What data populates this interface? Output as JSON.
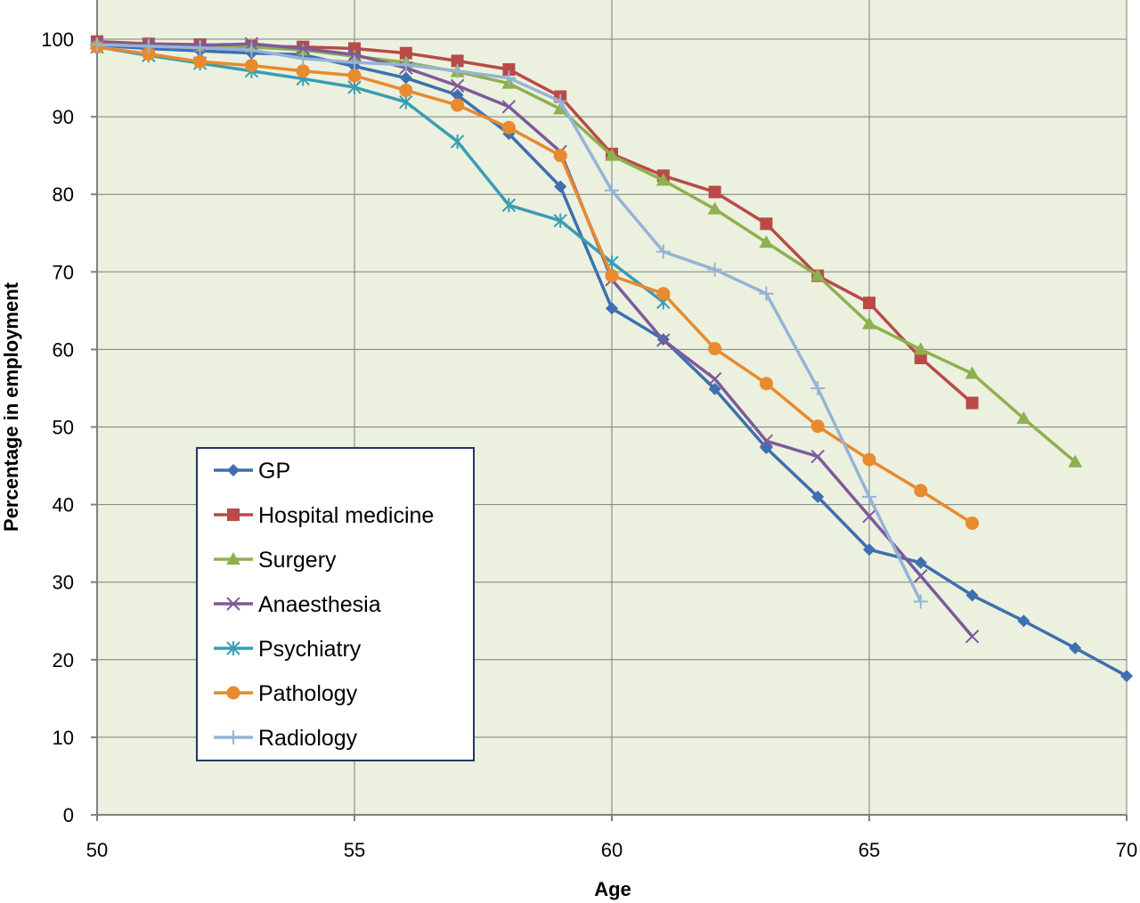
{
  "chart_data": {
    "type": "line",
    "title": "",
    "xlabel": "Age",
    "ylabel": "Percentage in employment",
    "xlim": [
      50,
      70
    ],
    "ylim": [
      0,
      100
    ],
    "x_ticks": [
      50,
      55,
      60,
      65,
      70
    ],
    "y_ticks": [
      0,
      10,
      20,
      30,
      40,
      50,
      60,
      70,
      80,
      90,
      100
    ],
    "grid": true,
    "legend_position": "bottom-left",
    "colors": {
      "plot_background": "#EBF1DE",
      "grid": "#7F7F7F",
      "legend_border": "#1F3864"
    },
    "series": [
      {
        "name": "GP",
        "color": "#3E6FB0",
        "marker": "diamond",
        "x": [
          50,
          51,
          52,
          53,
          54,
          55,
          56,
          57,
          58,
          59,
          60,
          61,
          62,
          63,
          64,
          65,
          66,
          67,
          68,
          69,
          70
        ],
        "values": [
          99.2,
          98.8,
          98.5,
          98.2,
          98.0,
          96.5,
          95.0,
          92.8,
          87.8,
          81.0,
          65.3,
          61.3,
          54.9,
          47.3,
          41.0,
          34.2,
          32.5,
          28.3,
          25.0,
          21.5,
          17.9
        ]
      },
      {
        "name": "Hospital medicine",
        "color": "#B94A48",
        "marker": "square",
        "x": [
          50,
          51,
          52,
          53,
          54,
          55,
          56,
          57,
          58,
          59,
          60,
          61,
          62,
          63,
          64,
          65,
          66,
          67
        ],
        "values": [
          99.7,
          99.4,
          99.3,
          99.1,
          99.0,
          98.8,
          98.2,
          97.2,
          96.1,
          92.6,
          85.2,
          82.4,
          80.3,
          76.2,
          69.5,
          66.0,
          58.9,
          53.1
        ]
      },
      {
        "name": "Surgery",
        "color": "#8EB04E",
        "marker": "triangle",
        "x": [
          50,
          51,
          52,
          53,
          54,
          55,
          56,
          57,
          58,
          59,
          60,
          61,
          62,
          63,
          64,
          65,
          66,
          67,
          68,
          69
        ],
        "values": [
          99.4,
          99.2,
          99.1,
          99.0,
          98.6,
          97.8,
          97.0,
          95.8,
          94.3,
          91.0,
          85.0,
          81.8,
          78.1,
          73.8,
          69.5,
          63.3,
          60.0,
          56.9,
          51.1,
          45.5
        ]
      },
      {
        "name": "Anaesthesia",
        "color": "#7D5A9B",
        "marker": "x",
        "x": [
          50,
          51,
          52,
          53,
          54,
          55,
          56,
          57,
          58,
          59,
          60,
          61,
          62,
          63,
          64,
          65,
          66,
          67
        ],
        "values": [
          99.5,
          99.3,
          99.2,
          99.4,
          98.8,
          98.0,
          96.3,
          94.0,
          91.3,
          85.5,
          69.0,
          61.2,
          56.2,
          48.2,
          46.2,
          38.5,
          30.8,
          23.0
        ]
      },
      {
        "name": "Psychiatry",
        "color": "#3A9DB3",
        "marker": "star",
        "x": [
          50,
          51,
          52,
          53,
          54,
          55,
          56,
          57,
          58,
          59,
          60,
          61
        ],
        "values": [
          99.0,
          97.9,
          96.9,
          95.9,
          94.9,
          93.8,
          91.9,
          86.8,
          78.6,
          76.6,
          71.2,
          66.1
        ]
      },
      {
        "name": "Pathology",
        "color": "#E88A2E",
        "marker": "circle",
        "x": [
          50,
          51,
          52,
          53,
          54,
          55,
          56,
          57,
          58,
          59,
          60,
          61,
          62,
          63,
          64,
          65,
          66,
          67
        ],
        "values": [
          99.0,
          98.1,
          97.1,
          96.6,
          95.9,
          95.3,
          93.4,
          91.5,
          88.6,
          85.0,
          69.5,
          67.2,
          60.1,
          55.6,
          50.1,
          45.8,
          41.8,
          37.6
        ]
      },
      {
        "name": "Radiology",
        "color": "#95B3D7",
        "marker": "plus",
        "x": [
          50,
          51,
          52,
          53,
          54,
          55,
          56,
          57,
          58,
          59,
          60,
          61,
          62,
          63,
          64,
          65,
          66
        ],
        "values": [
          99.3,
          99.1,
          98.9,
          98.6,
          97.5,
          97.0,
          96.7,
          95.9,
          95.0,
          92.0,
          80.5,
          72.6,
          70.3,
          67.2,
          55.0,
          41.0,
          27.5
        ]
      }
    ]
  }
}
